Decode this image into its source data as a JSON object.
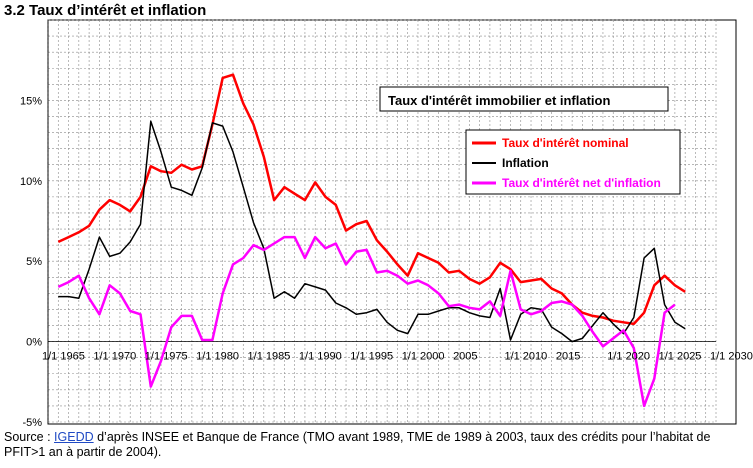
{
  "heading": "3.2 Taux d’intérêt et inflation",
  "source": {
    "prefix": "Source : ",
    "link": "IGEDD",
    "rest": " d’après INSEE et  Banque de France (TMO avant 1989, TME de 1989 à 2003, taux des crédits pour l’habitat de PFIT>1 an à partir de 2004)."
  },
  "chart_data": {
    "type": "line",
    "title": "Taux d'intérêt immobilier  et inflation",
    "xlim": [
      1964,
      2030
    ],
    "ylim": [
      -5,
      20
    ],
    "grid": true,
    "legend_position": "right",
    "y_ticks": [
      {
        "value": 15,
        "label": "15%"
      },
      {
        "value": 10,
        "label": "10%"
      },
      {
        "value": 5,
        "label": "5%"
      },
      {
        "value": 0,
        "label": "0%"
      },
      {
        "value": -5,
        "label": "-5%"
      }
    ],
    "x_ticks": [
      {
        "value": 1964,
        "label": "1/1 1965"
      },
      {
        "value": 1969,
        "label": "1/1 1970"
      },
      {
        "value": 1974,
        "label": "1/1 1975"
      },
      {
        "value": 1979,
        "label": "1/1 1980"
      },
      {
        "value": 1984,
        "label": "1/1 1985"
      },
      {
        "value": 1989,
        "label": "1/1 1990"
      },
      {
        "value": 1994,
        "label": "1/1 1995"
      },
      {
        "value": 1999,
        "label": "1/1 2000"
      },
      {
        "value": 2004,
        "label": "2005"
      },
      {
        "value": 2009,
        "label": "1/1 2010"
      },
      {
        "value": 2014,
        "label": "2015"
      },
      {
        "value": 2019,
        "label": "1/1 2020"
      },
      {
        "value": 2024,
        "label": "1/1 2025"
      },
      {
        "value": 2029,
        "label": "1/1 2030"
      }
    ],
    "series": [
      {
        "name": "Taux d'intérêt nominal",
        "color": "#ff0000",
        "width": 2.5,
        "points": [
          [
            1965,
            6.2
          ],
          [
            1966,
            6.5
          ],
          [
            1967,
            6.8
          ],
          [
            1968,
            7.2
          ],
          [
            1969,
            8.2
          ],
          [
            1970,
            8.8
          ],
          [
            1971,
            8.5
          ],
          [
            1972,
            8.1
          ],
          [
            1973,
            9.0
          ],
          [
            1974,
            10.9
          ],
          [
            1975,
            10.6
          ],
          [
            1976,
            10.5
          ],
          [
            1977,
            11.0
          ],
          [
            1978,
            10.7
          ],
          [
            1979,
            10.9
          ],
          [
            1980,
            13.5
          ],
          [
            1981,
            16.4
          ],
          [
            1982,
            16.6
          ],
          [
            1983,
            14.8
          ],
          [
            1984,
            13.5
          ],
          [
            1985,
            11.5
          ],
          [
            1986,
            8.8
          ],
          [
            1987,
            9.6
          ],
          [
            1988,
            9.2
          ],
          [
            1989,
            8.8
          ],
          [
            1990,
            9.9
          ],
          [
            1991,
            9.0
          ],
          [
            1992,
            8.5
          ],
          [
            1993,
            6.9
          ],
          [
            1994,
            7.3
          ],
          [
            1995,
            7.5
          ],
          [
            1996,
            6.3
          ],
          [
            1997,
            5.6
          ],
          [
            1998,
            4.8
          ],
          [
            1999,
            4.1
          ],
          [
            2000,
            5.5
          ],
          [
            2001,
            5.2
          ],
          [
            2002,
            4.9
          ],
          [
            2003,
            4.3
          ],
          [
            2004,
            4.4
          ],
          [
            2005,
            3.9
          ],
          [
            2006,
            3.6
          ],
          [
            2007,
            4.0
          ],
          [
            2008,
            4.9
          ],
          [
            2009,
            4.5
          ],
          [
            2010,
            3.7
          ],
          [
            2011,
            3.8
          ],
          [
            2012,
            3.9
          ],
          [
            2013,
            3.3
          ],
          [
            2014,
            3.0
          ],
          [
            2015,
            2.3
          ],
          [
            2016,
            1.8
          ],
          [
            2017,
            1.6
          ],
          [
            2018,
            1.5
          ],
          [
            2019,
            1.3
          ],
          [
            2020,
            1.2
          ],
          [
            2021,
            1.1
          ],
          [
            2022,
            1.8
          ],
          [
            2023,
            3.5
          ],
          [
            2024,
            4.1
          ],
          [
            2025,
            3.5
          ],
          [
            2026,
            3.1
          ]
        ]
      },
      {
        "name": "Inflation",
        "color": "#000000",
        "width": 1.5,
        "points": [
          [
            1965,
            2.8
          ],
          [
            1966,
            2.8
          ],
          [
            1967,
            2.7
          ],
          [
            1968,
            4.5
          ],
          [
            1969,
            6.5
          ],
          [
            1970,
            5.3
          ],
          [
            1971,
            5.5
          ],
          [
            1972,
            6.2
          ],
          [
            1973,
            7.3
          ],
          [
            1974,
            13.7
          ],
          [
            1975,
            11.8
          ],
          [
            1976,
            9.6
          ],
          [
            1977,
            9.4
          ],
          [
            1978,
            9.1
          ],
          [
            1979,
            10.8
          ],
          [
            1980,
            13.6
          ],
          [
            1981,
            13.4
          ],
          [
            1982,
            11.8
          ],
          [
            1983,
            9.6
          ],
          [
            1984,
            7.4
          ],
          [
            1985,
            5.8
          ],
          [
            1986,
            2.7
          ],
          [
            1987,
            3.1
          ],
          [
            1988,
            2.7
          ],
          [
            1989,
            3.6
          ],
          [
            1990,
            3.4
          ],
          [
            1991,
            3.2
          ],
          [
            1992,
            2.4
          ],
          [
            1993,
            2.1
          ],
          [
            1994,
            1.7
          ],
          [
            1995,
            1.8
          ],
          [
            1996,
            2.0
          ],
          [
            1997,
            1.2
          ],
          [
            1998,
            0.7
          ],
          [
            1999,
            0.5
          ],
          [
            2000,
            1.7
          ],
          [
            2001,
            1.7
          ],
          [
            2002,
            1.9
          ],
          [
            2003,
            2.1
          ],
          [
            2004,
            2.1
          ],
          [
            2005,
            1.8
          ],
          [
            2006,
            1.6
          ],
          [
            2007,
            1.5
          ],
          [
            2008,
            3.3
          ],
          [
            2009,
            0.1
          ],
          [
            2010,
            1.7
          ],
          [
            2011,
            2.1
          ],
          [
            2012,
            2.0
          ],
          [
            2013,
            0.9
          ],
          [
            2014,
            0.5
          ],
          [
            2015,
            0.0
          ],
          [
            2016,
            0.2
          ],
          [
            2017,
            1.0
          ],
          [
            2018,
            1.8
          ],
          [
            2019,
            1.1
          ],
          [
            2020,
            0.5
          ],
          [
            2021,
            1.5
          ],
          [
            2022,
            5.2
          ],
          [
            2023,
            5.8
          ],
          [
            2024,
            2.3
          ],
          [
            2025,
            1.2
          ],
          [
            2026,
            0.8
          ]
        ]
      },
      {
        "name": "Taux d'intérêt net d'inflation",
        "color": "#ff00ff",
        "width": 2.5,
        "points": [
          [
            1965,
            3.4
          ],
          [
            1966,
            3.7
          ],
          [
            1967,
            4.1
          ],
          [
            1968,
            2.7
          ],
          [
            1969,
            1.7
          ],
          [
            1970,
            3.5
          ],
          [
            1971,
            3.0
          ],
          [
            1972,
            1.9
          ],
          [
            1973,
            1.7
          ],
          [
            1974,
            -2.8
          ],
          [
            1975,
            -1.2
          ],
          [
            1976,
            0.9
          ],
          [
            1977,
            1.6
          ],
          [
            1978,
            1.6
          ],
          [
            1979,
            0.1
          ],
          [
            1980,
            0.1
          ],
          [
            1981,
            3.0
          ],
          [
            1982,
            4.8
          ],
          [
            1983,
            5.2
          ],
          [
            1984,
            6.0
          ],
          [
            1985,
            5.7
          ],
          [
            1986,
            6.1
          ],
          [
            1987,
            6.5
          ],
          [
            1988,
            6.5
          ],
          [
            1989,
            5.2
          ],
          [
            1990,
            6.5
          ],
          [
            1991,
            5.8
          ],
          [
            1992,
            6.1
          ],
          [
            1993,
            4.8
          ],
          [
            1994,
            5.6
          ],
          [
            1995,
            5.7
          ],
          [
            1996,
            4.3
          ],
          [
            1997,
            4.4
          ],
          [
            1998,
            4.1
          ],
          [
            1999,
            3.6
          ],
          [
            2000,
            3.8
          ],
          [
            2001,
            3.5
          ],
          [
            2002,
            3.0
          ],
          [
            2003,
            2.2
          ],
          [
            2004,
            2.3
          ],
          [
            2005,
            2.1
          ],
          [
            2006,
            2.0
          ],
          [
            2007,
            2.5
          ],
          [
            2008,
            1.6
          ],
          [
            2009,
            4.4
          ],
          [
            2010,
            2.0
          ],
          [
            2011,
            1.7
          ],
          [
            2012,
            1.9
          ],
          [
            2013,
            2.4
          ],
          [
            2014,
            2.5
          ],
          [
            2015,
            2.3
          ],
          [
            2016,
            1.6
          ],
          [
            2017,
            0.6
          ],
          [
            2018,
            -0.3
          ],
          [
            2019,
            0.2
          ],
          [
            2020,
            0.7
          ],
          [
            2021,
            -0.4
          ],
          [
            2022,
            -4.0
          ],
          [
            2023,
            -2.3
          ],
          [
            2024,
            1.8
          ],
          [
            2025,
            2.3
          ]
        ]
      }
    ]
  }
}
